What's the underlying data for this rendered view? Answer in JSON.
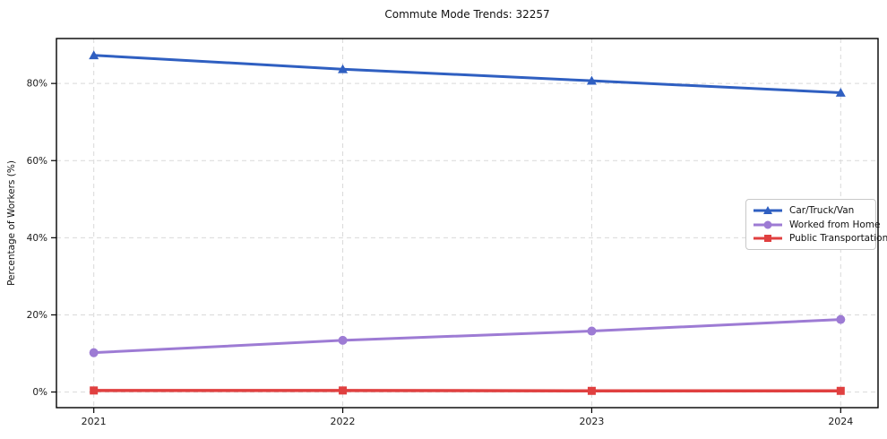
{
  "chart_data": {
    "type": "line",
    "title": "Commute Mode Trends: 32257",
    "xlabel": "",
    "ylabel": "Percentage of Workers (%)",
    "categories": [
      "2021",
      "2022",
      "2023",
      "2024"
    ],
    "x": [
      2021,
      2022,
      2023,
      2024
    ],
    "xlim": [
      2020.85,
      2024.15
    ],
    "ylim": [
      -4.05,
      91.65
    ],
    "yticks": {
      "values": [
        0,
        20,
        40,
        60,
        80
      ],
      "labels": [
        "0%",
        "20%",
        "40%",
        "60%",
        "80%"
      ]
    },
    "grid": "dashed, both axes",
    "legend_position": "center-right",
    "series": [
      {
        "name": "Car/Truck/Van",
        "color": "#2f5fc1",
        "marker": "triangle",
        "line_width": 3,
        "values": [
          87.3,
          83.7,
          80.7,
          77.6
        ]
      },
      {
        "name": "Worked from Home",
        "color": "#9d7bd4",
        "marker": "circle",
        "line_width": 3,
        "values": [
          10.2,
          13.4,
          15.8,
          18.8
        ]
      },
      {
        "name": "Public Transportation",
        "color": "#e04040",
        "marker": "square",
        "line_width": 3.5,
        "values": [
          0.4,
          0.4,
          0.3,
          0.3
        ]
      }
    ],
    "colors": {
      "grid": "#d9d9d9",
      "spine": "#000000",
      "text": "#1a1a1a",
      "background": "#ffffff"
    }
  }
}
